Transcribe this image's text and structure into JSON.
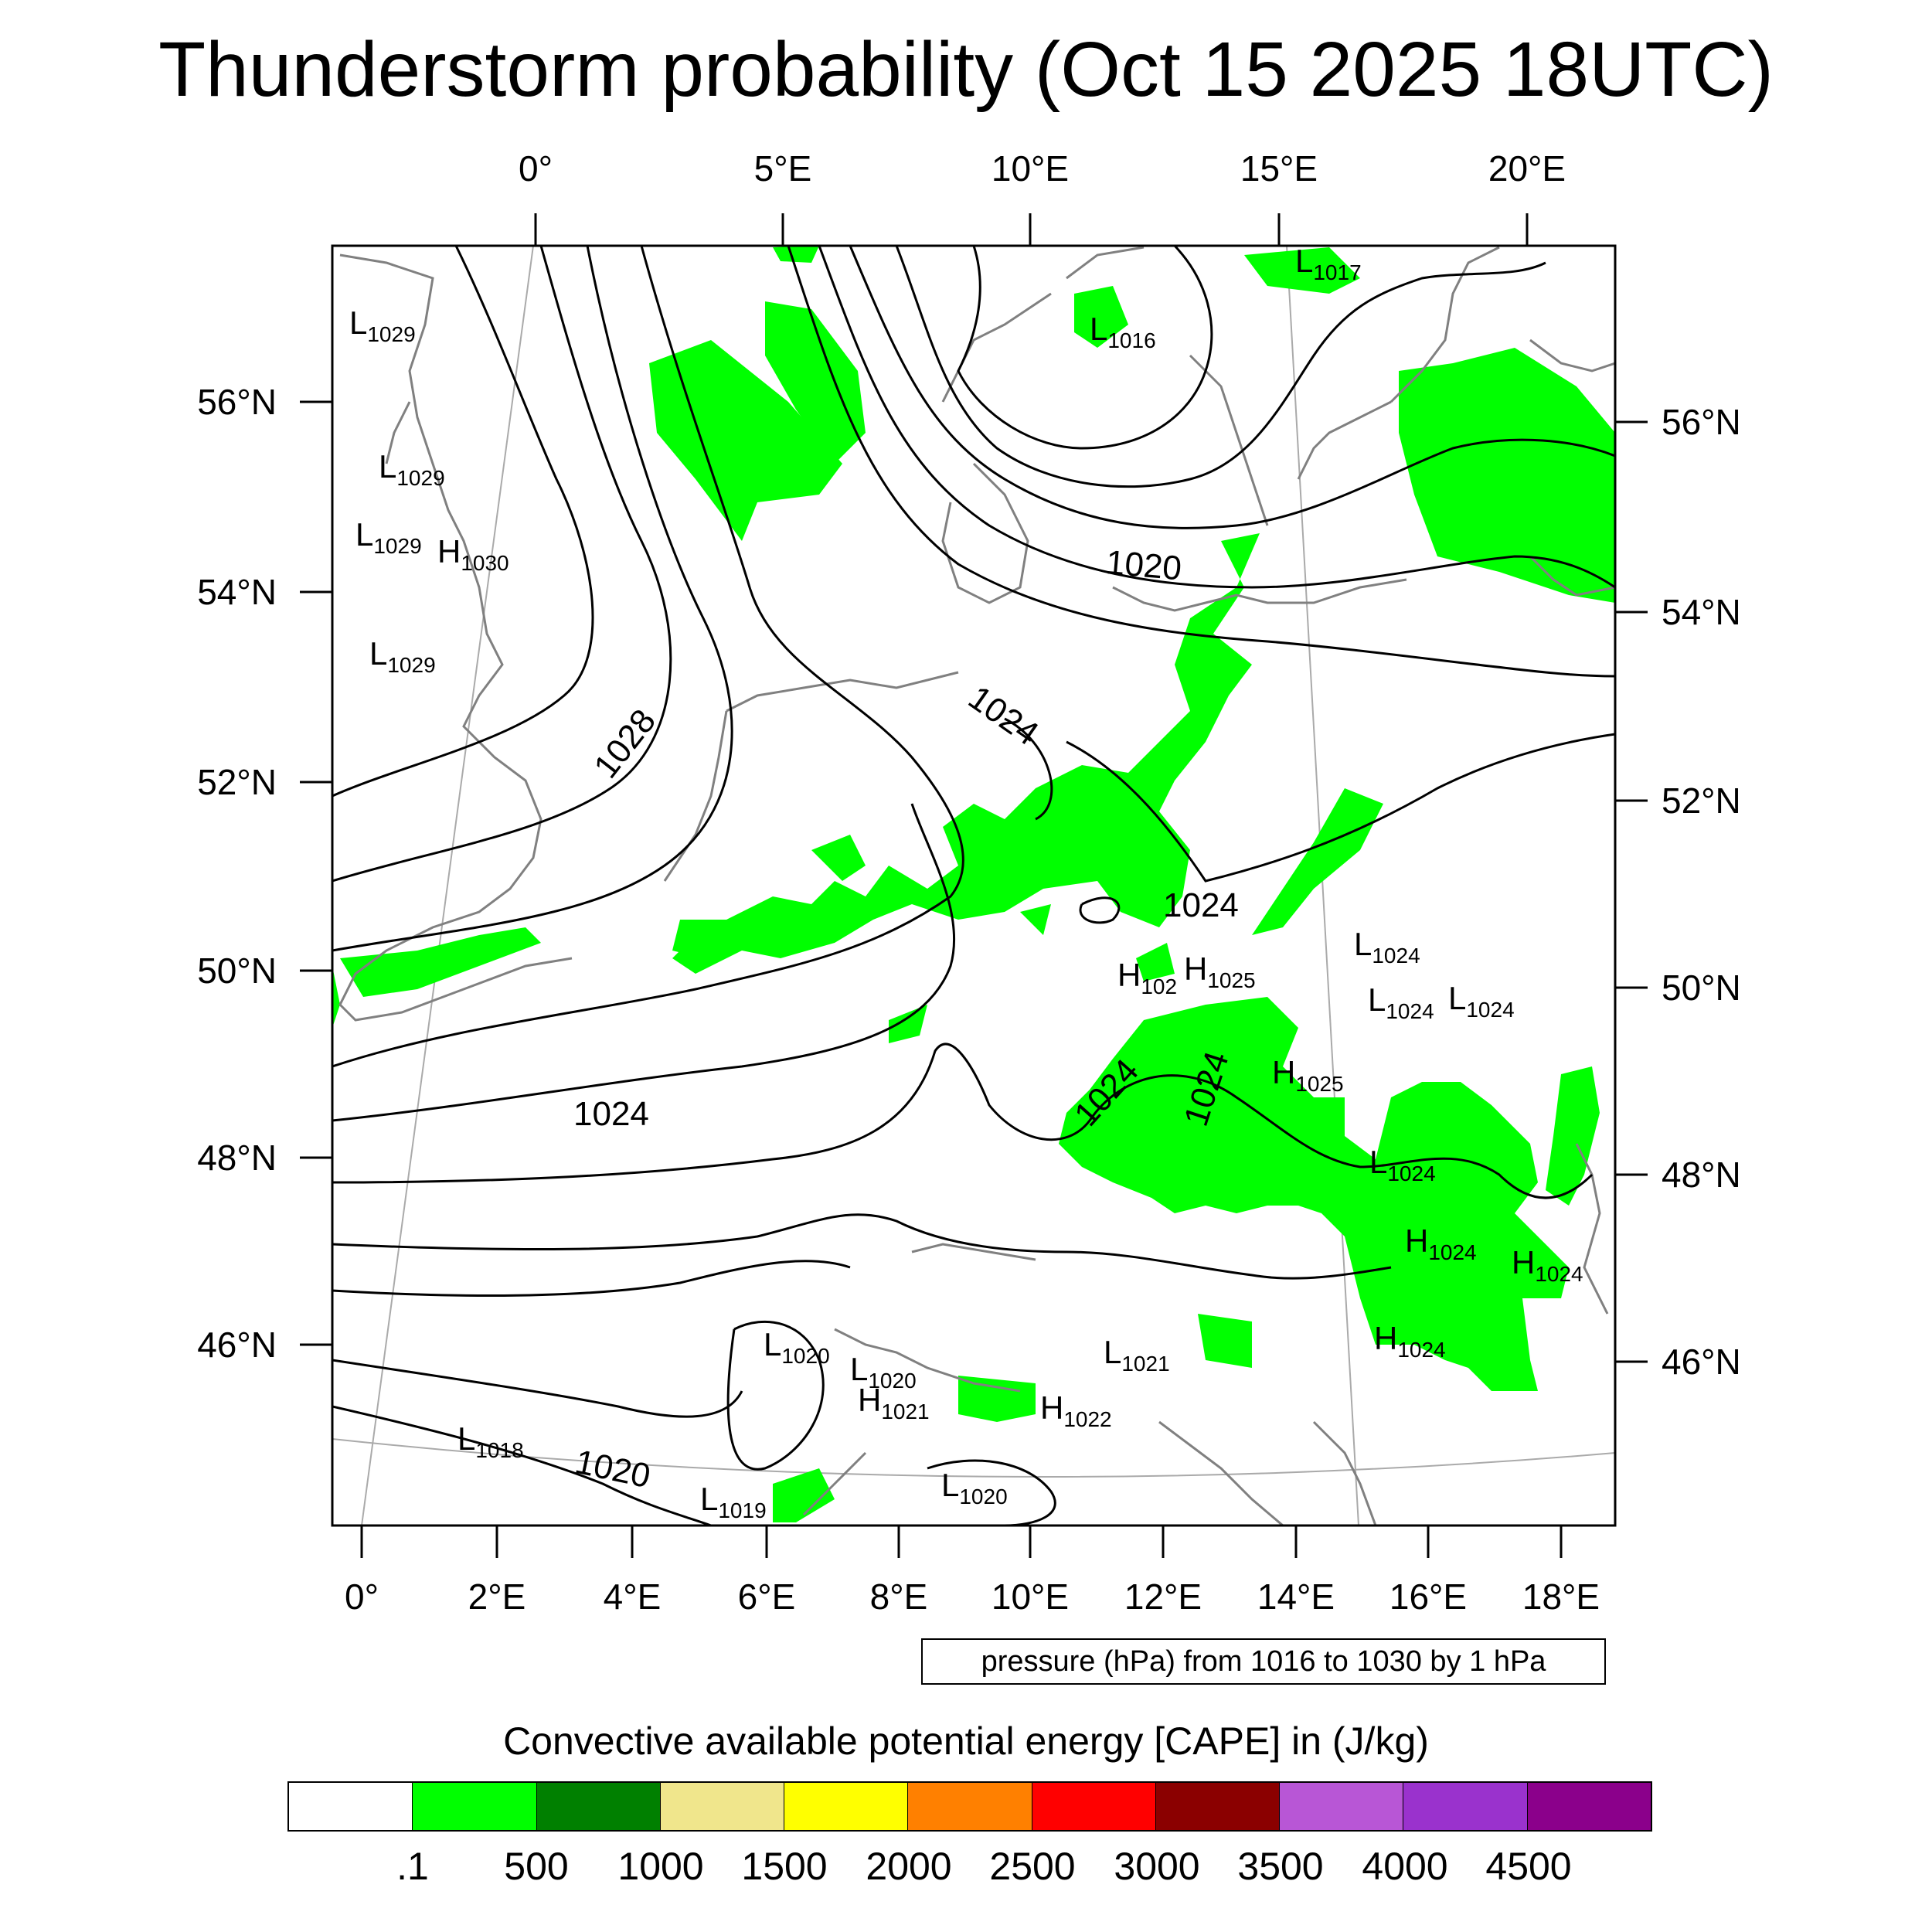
{
  "title": "Thunderstorm probability (Oct 15 2025 18UTC)",
  "top_axis_labels": [
    "0°",
    "5°E",
    "10°E",
    "15°E",
    "20°E"
  ],
  "bottom_axis_labels": [
    "0°",
    "2°E",
    "4°E",
    "6°E",
    "8°E",
    "10°E",
    "12°E",
    "14°E",
    "16°E",
    "18°E"
  ],
  "left_axis_labels": [
    "56°N",
    "54°N",
    "52°N",
    "50°N",
    "48°N",
    "46°N"
  ],
  "right_axis_labels": [
    "56°N",
    "54°N",
    "52°N",
    "50°N",
    "48°N",
    "46°N"
  ],
  "contour_info": "pressure (hPa) from 1016 to 1030 by 1 hPa",
  "contour_labels": [
    "1028",
    "1024",
    "1024",
    "1024",
    "1024",
    "1024",
    "1020",
    "1020"
  ],
  "pressure_centers": [
    {
      "type": "L",
      "value": "1029"
    },
    {
      "type": "L",
      "value": "1029"
    },
    {
      "type": "L",
      "value": "1029"
    },
    {
      "type": "H",
      "value": "1030"
    },
    {
      "type": "L",
      "value": "1029"
    },
    {
      "type": "L",
      "value": "1016"
    },
    {
      "type": "L",
      "value": "1017"
    },
    {
      "type": "H",
      "value": "102"
    },
    {
      "type": "H",
      "value": "1025"
    },
    {
      "type": "L",
      "value": "1024"
    },
    {
      "type": "L",
      "value": "1024"
    },
    {
      "type": "L",
      "value": "1024"
    },
    {
      "type": "H",
      "value": "1025"
    },
    {
      "type": "L",
      "value": "1024"
    },
    {
      "type": "H",
      "value": "1024"
    },
    {
      "type": "H",
      "value": "1024"
    },
    {
      "type": "H",
      "value": "1024"
    },
    {
      "type": "L",
      "value": "1020"
    },
    {
      "type": "L",
      "value": "1020"
    },
    {
      "type": "H",
      "value": "1021"
    },
    {
      "type": "L",
      "value": "1021"
    },
    {
      "type": "H",
      "value": "1022"
    },
    {
      "type": "L",
      "value": "1018"
    },
    {
      "type": "L",
      "value": "1019"
    },
    {
      "type": "L",
      "value": "1020"
    }
  ],
  "legend": {
    "title": "Convective available potential energy [CAPE] in (J/kg)",
    "colors": [
      "#ffffff",
      "#00ff00",
      "#008000",
      "#f0e68c",
      "#ffff00",
      "#ff8000",
      "#ff0000",
      "#8b0000",
      "#b856d6",
      "#9a32cd",
      "#8b008b"
    ],
    "labels": [
      ".1",
      "500",
      "1000",
      "1500",
      "2000",
      "2500",
      "3000",
      "3500",
      "4000",
      "4500"
    ]
  }
}
